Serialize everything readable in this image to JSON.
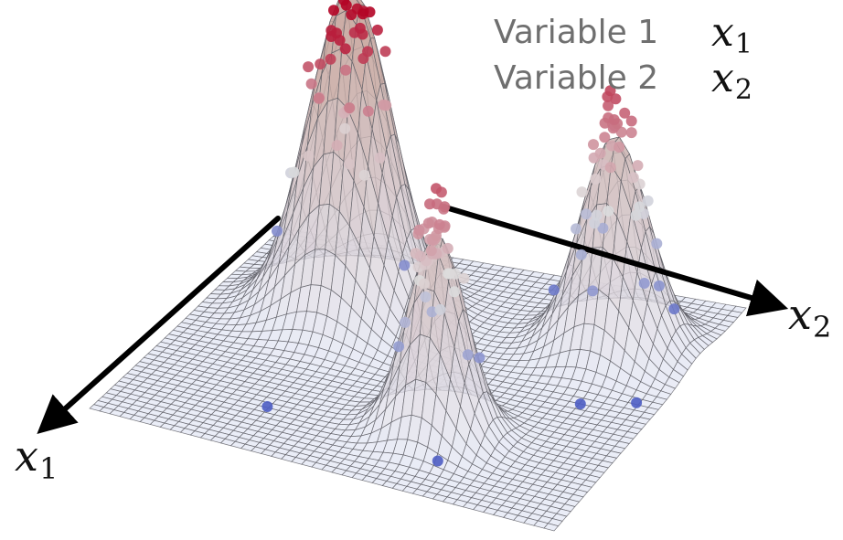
{
  "legend": {
    "items": [
      {
        "name": "Variable 1",
        "symbol": "x",
        "subscript": "1"
      },
      {
        "name": "Variable 2",
        "symbol": "x",
        "subscript": "2"
      }
    ]
  },
  "axes": {
    "x1": {
      "symbol": "x",
      "subscript": "1"
    },
    "x2": {
      "symbol": "x",
      "subscript": "2"
    }
  },
  "colors": {
    "mesh_line": "#5f5f66",
    "surface_low": "#e4e8f5",
    "surface_high": "#c9a9a1",
    "point_low": "#3b4cc0",
    "point_mid": "#dddddd",
    "point_high": "#b40426",
    "axis_arrow": "#000000",
    "legend_text": "#6f6f6f"
  },
  "surface": {
    "type": "3d-mesh",
    "peaks": 3,
    "description": ""
  }
}
